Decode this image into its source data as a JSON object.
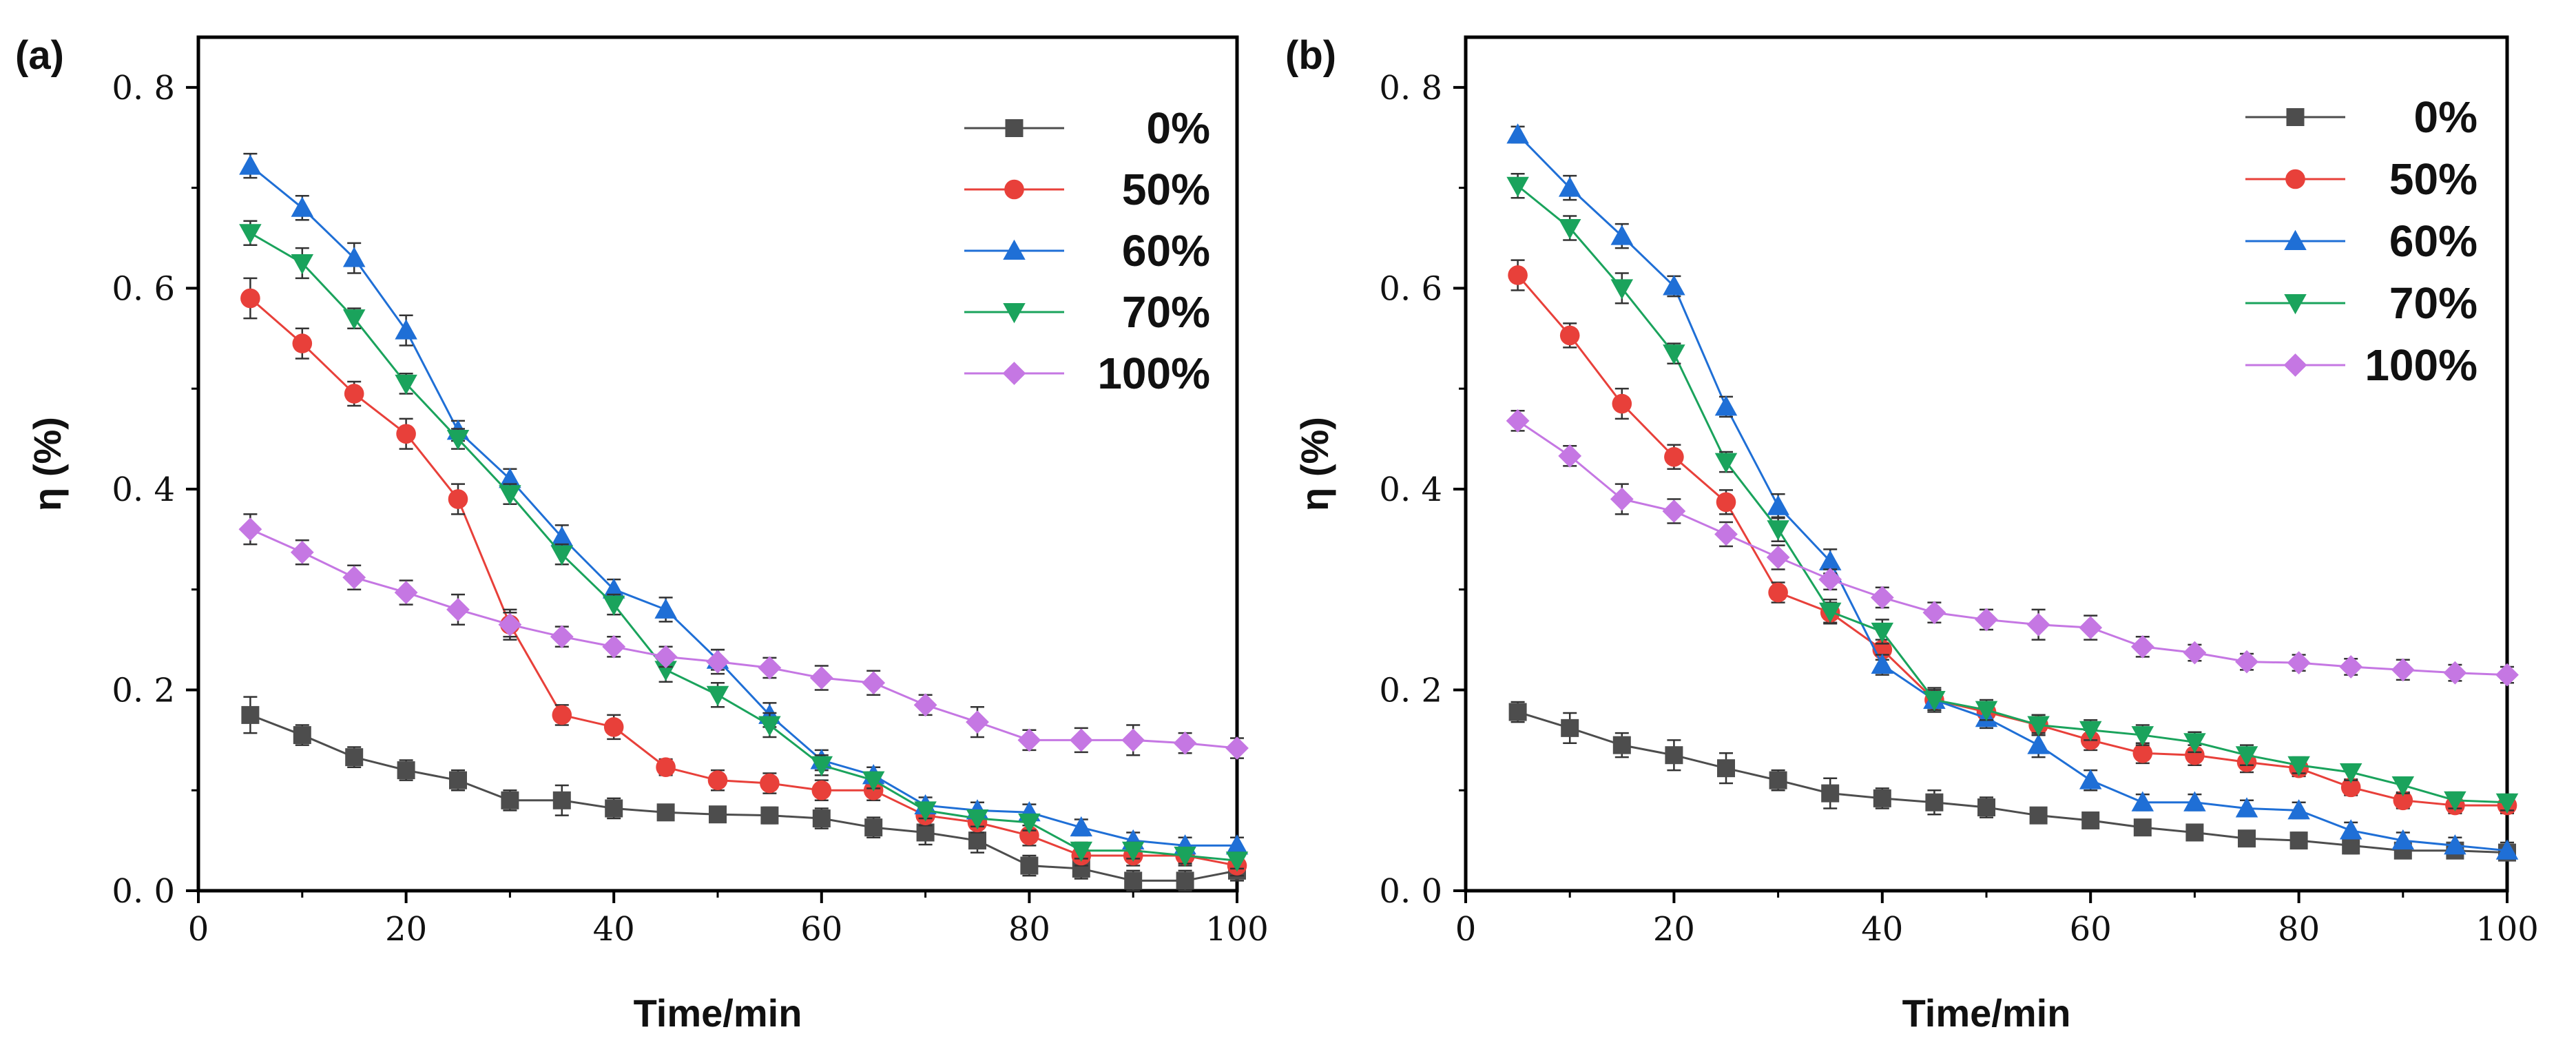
{
  "chart_data": [
    {
      "type": "line",
      "panel_label": "(a)",
      "xlabel": "Time/min",
      "ylabel": "η (%)",
      "xlim": [
        0,
        100
      ],
      "ylim": [
        0,
        0.85
      ],
      "xticks": [
        0,
        20,
        40,
        60,
        80,
        100
      ],
      "yticks": [
        0.0,
        0.2,
        0.4,
        0.6,
        0.8
      ],
      "xtick_labels": [
        "0",
        "20",
        "40",
        "60",
        "80",
        "100"
      ],
      "ytick_labels": [
        "0. 0",
        "0. 2",
        "0. 4",
        "0. 6",
        "0. 8"
      ],
      "legend_position": "top-right",
      "x": [
        5,
        10,
        15,
        20,
        25,
        30,
        35,
        40,
        45,
        50,
        55,
        60,
        65,
        70,
        75,
        80,
        85,
        90,
        95,
        100
      ],
      "series": [
        {
          "name": "0%",
          "color": "#4d4d4d",
          "marker": "square",
          "values": [
            0.175,
            0.155,
            0.133,
            0.12,
            0.11,
            0.09,
            0.09,
            0.082,
            0.078,
            0.076,
            0.075,
            0.072,
            0.063,
            0.058,
            0.05,
            0.025,
            0.022,
            0.01,
            0.01,
            0.02
          ],
          "errors": [
            0.018,
            0.01,
            0.01,
            0.01,
            0.01,
            0.01,
            0.015,
            0.01,
            0.005,
            0.005,
            0.008,
            0.01,
            0.01,
            0.012,
            0.012,
            0.01,
            0.01,
            0.01,
            0.01,
            0.01
          ]
        },
        {
          "name": "50%",
          "color": "#e8403a",
          "marker": "circle",
          "values": [
            0.59,
            0.545,
            0.495,
            0.455,
            0.39,
            0.265,
            0.175,
            0.163,
            0.123,
            0.11,
            0.107,
            0.1,
            0.1,
            0.075,
            0.068,
            0.055,
            0.035,
            0.035,
            0.035,
            0.025
          ],
          "errors": [
            0.02,
            0.015,
            0.012,
            0.015,
            0.015,
            0.015,
            0.01,
            0.012,
            0.008,
            0.01,
            0.01,
            0.01,
            0.01,
            0.01,
            0.01,
            0.01,
            0.01,
            0.01,
            0.01,
            0.01
          ]
        },
        {
          "name": "60%",
          "color": "#1f6fd6",
          "marker": "triangle-up",
          "values": [
            0.722,
            0.68,
            0.63,
            0.558,
            0.458,
            0.41,
            0.352,
            0.3,
            0.28,
            0.23,
            0.175,
            0.13,
            0.115,
            0.085,
            0.08,
            0.078,
            0.063,
            0.05,
            0.045,
            0.045
          ],
          "errors": [
            0.012,
            0.012,
            0.015,
            0.015,
            0.01,
            0.01,
            0.012,
            0.01,
            0.012,
            0.01,
            0.012,
            0.01,
            0.008,
            0.008,
            0.008,
            0.008,
            0.008,
            0.008,
            0.008,
            0.008
          ]
        },
        {
          "name": "70%",
          "color": "#1aa35c",
          "marker": "triangle-down",
          "values": [
            0.655,
            0.625,
            0.57,
            0.505,
            0.45,
            0.395,
            0.335,
            0.285,
            0.22,
            0.195,
            0.165,
            0.125,
            0.11,
            0.08,
            0.072,
            0.068,
            0.04,
            0.04,
            0.035,
            0.03
          ],
          "errors": [
            0.012,
            0.015,
            0.01,
            0.01,
            0.01,
            0.01,
            0.01,
            0.01,
            0.012,
            0.012,
            0.012,
            0.01,
            0.008,
            0.008,
            0.008,
            0.008,
            0.008,
            0.008,
            0.008,
            0.008
          ]
        },
        {
          "name": "100%",
          "color": "#c577e3",
          "marker": "diamond",
          "values": [
            0.36,
            0.337,
            0.312,
            0.297,
            0.28,
            0.265,
            0.253,
            0.243,
            0.233,
            0.228,
            0.222,
            0.212,
            0.207,
            0.185,
            0.168,
            0.15,
            0.15,
            0.15,
            0.147,
            0.142
          ],
          "errors": [
            0.015,
            0.012,
            0.012,
            0.012,
            0.015,
            0.012,
            0.01,
            0.01,
            0.01,
            0.012,
            0.01,
            0.012,
            0.012,
            0.01,
            0.015,
            0.01,
            0.012,
            0.015,
            0.01,
            0.01
          ]
        }
      ]
    },
    {
      "type": "line",
      "panel_label": "(b)",
      "xlabel": "Time/min",
      "ylabel": "η (%)",
      "xlim": [
        0,
        100
      ],
      "ylim": [
        0,
        0.85
      ],
      "xticks": [
        0,
        20,
        40,
        60,
        80,
        100
      ],
      "yticks": [
        0.0,
        0.2,
        0.4,
        0.6,
        0.8
      ],
      "xtick_labels": [
        "0",
        "20",
        "40",
        "60",
        "80",
        "100"
      ],
      "ytick_labels": [
        "0. 0",
        "0. 2",
        "0. 4",
        "0. 6",
        "0. 8"
      ],
      "legend_position": "top-right",
      "x": [
        5,
        10,
        15,
        20,
        25,
        30,
        35,
        40,
        45,
        50,
        55,
        60,
        65,
        70,
        75,
        80,
        85,
        90,
        95,
        100
      ],
      "series": [
        {
          "name": "0%",
          "color": "#4d4d4d",
          "marker": "square",
          "values": [
            0.178,
            0.162,
            0.145,
            0.135,
            0.122,
            0.11,
            0.097,
            0.092,
            0.088,
            0.083,
            0.075,
            0.07,
            0.063,
            0.058,
            0.052,
            0.05,
            0.045,
            0.04,
            0.04,
            0.038
          ],
          "errors": [
            0.01,
            0.015,
            0.012,
            0.015,
            0.015,
            0.01,
            0.015,
            0.01,
            0.012,
            0.01,
            0.005,
            0.005,
            0.005,
            0.005,
            0.005,
            0.008,
            0.008,
            0.005,
            0.005,
            0.005
          ]
        },
        {
          "name": "50%",
          "color": "#e8403a",
          "marker": "circle",
          "values": [
            0.613,
            0.553,
            0.485,
            0.432,
            0.387,
            0.297,
            0.277,
            0.24,
            0.19,
            0.178,
            0.165,
            0.15,
            0.137,
            0.135,
            0.128,
            0.122,
            0.103,
            0.09,
            0.085,
            0.085
          ],
          "errors": [
            0.015,
            0.012,
            0.015,
            0.012,
            0.012,
            0.01,
            0.01,
            0.01,
            0.01,
            0.01,
            0.01,
            0.01,
            0.01,
            0.01,
            0.01,
            0.008,
            0.008,
            0.008,
            0.008,
            0.008
          ]
        },
        {
          "name": "60%",
          "color": "#1f6fd6",
          "marker": "triangle-up",
          "values": [
            0.753,
            0.7,
            0.652,
            0.602,
            0.482,
            0.383,
            0.328,
            0.225,
            0.19,
            0.172,
            0.145,
            0.11,
            0.088,
            0.088,
            0.082,
            0.08,
            0.06,
            0.05,
            0.045,
            0.04
          ],
          "errors": [
            0.008,
            0.012,
            0.012,
            0.01,
            0.01,
            0.012,
            0.012,
            0.01,
            0.01,
            0.01,
            0.012,
            0.01,
            0.008,
            0.008,
            0.008,
            0.008,
            0.008,
            0.008,
            0.008,
            0.008
          ]
        },
        {
          "name": "70%",
          "color": "#1aa35c",
          "marker": "triangle-down",
          "values": [
            0.702,
            0.66,
            0.6,
            0.535,
            0.427,
            0.36,
            0.278,
            0.258,
            0.19,
            0.18,
            0.165,
            0.16,
            0.155,
            0.148,
            0.135,
            0.125,
            0.118,
            0.105,
            0.09,
            0.088
          ],
          "errors": [
            0.012,
            0.012,
            0.015,
            0.01,
            0.01,
            0.012,
            0.012,
            0.012,
            0.012,
            0.01,
            0.01,
            0.01,
            0.01,
            0.01,
            0.01,
            0.008,
            0.008,
            0.008,
            0.008,
            0.008
          ]
        },
        {
          "name": "100%",
          "color": "#c577e3",
          "marker": "diamond",
          "values": [
            0.468,
            0.433,
            0.39,
            0.378,
            0.355,
            0.332,
            0.31,
            0.292,
            0.277,
            0.27,
            0.265,
            0.262,
            0.243,
            0.237,
            0.228,
            0.227,
            0.223,
            0.22,
            0.217,
            0.215
          ],
          "errors": [
            0.01,
            0.01,
            0.015,
            0.012,
            0.012,
            0.012,
            0.01,
            0.01,
            0.01,
            0.01,
            0.015,
            0.012,
            0.01,
            0.008,
            0.008,
            0.008,
            0.008,
            0.01,
            0.008,
            0.008
          ]
        }
      ]
    }
  ]
}
